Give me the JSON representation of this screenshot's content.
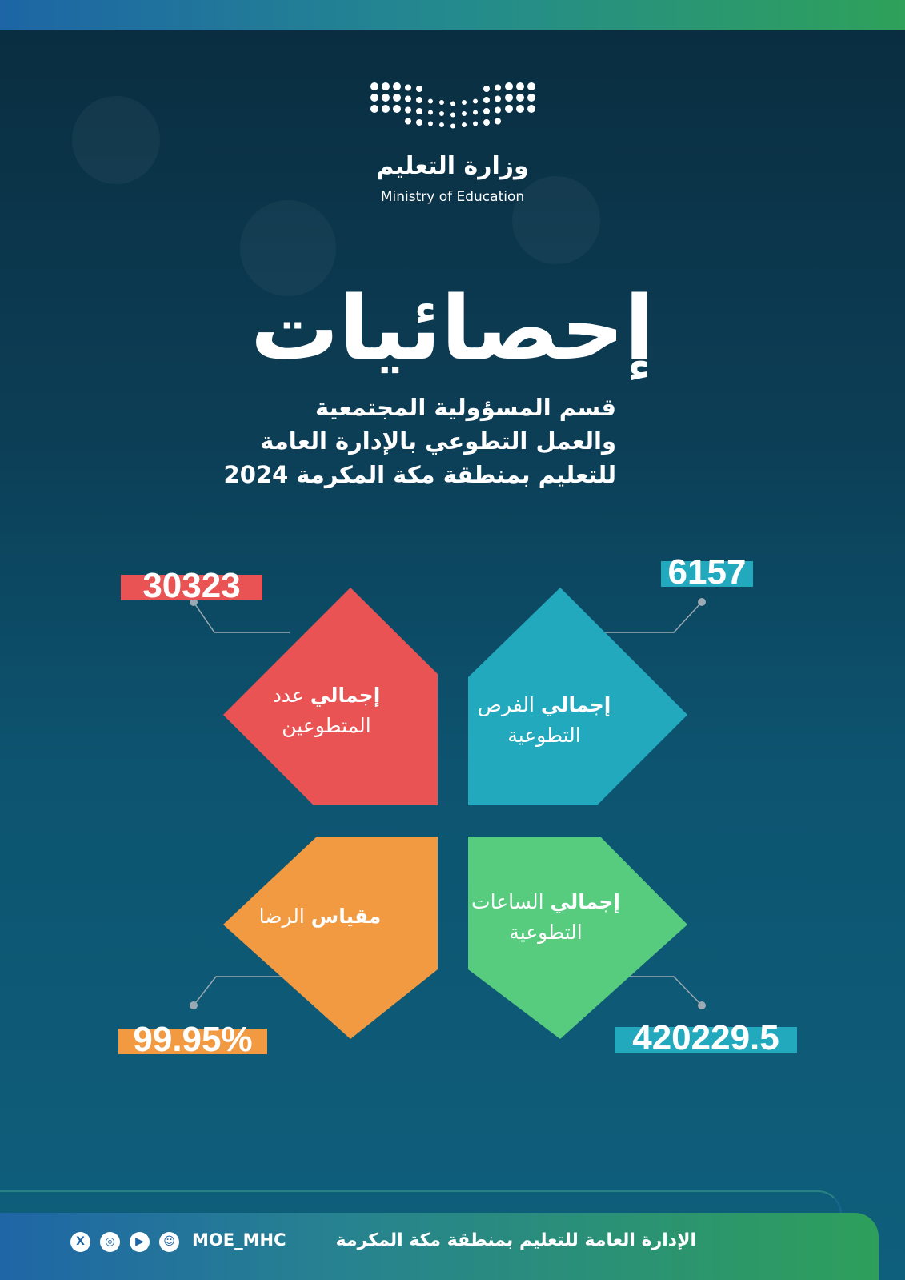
{
  "header": {
    "logo_arabic": "وزارة التعليم",
    "logo_english": "Ministry of Education"
  },
  "title": "إحصائيات",
  "subtitle_lines": [
    "قسم المسؤولية المجتمعية",
    "والعمل التطوعي بالإدارة العامة",
    "للتعليم بمنطقة مكة المكرمة 2024"
  ],
  "stats": [
    {
      "label_bold": "إجمالي",
      "label_rest": "عدد",
      "label_line2": "المتطوعين",
      "value": "30323",
      "color": "#e95353"
    },
    {
      "label_bold": "إجمالي",
      "label_rest": "الفرص",
      "label_line2": "التطوعية",
      "value": "6157",
      "color": "#23a9bd"
    },
    {
      "label_bold": "مقياس",
      "label_rest": "الرضا",
      "label_line2": "",
      "value": "99.95%",
      "color": "#f19a42"
    },
    {
      "label_bold": "إجمالي",
      "label_rest": "الساعات",
      "label_line2": "التطوعية",
      "value": "420229.5",
      "color": "#57cc7f",
      "value_bar_color": "#23a9bd"
    }
  ],
  "footer": {
    "organization": "الإدارة العامة للتعليم بمنطقة مكة المكرمة",
    "handle": "MOE_MHC",
    "social_icons": [
      "x-icon",
      "instagram-icon",
      "youtube-icon",
      "snapchat-icon"
    ]
  }
}
